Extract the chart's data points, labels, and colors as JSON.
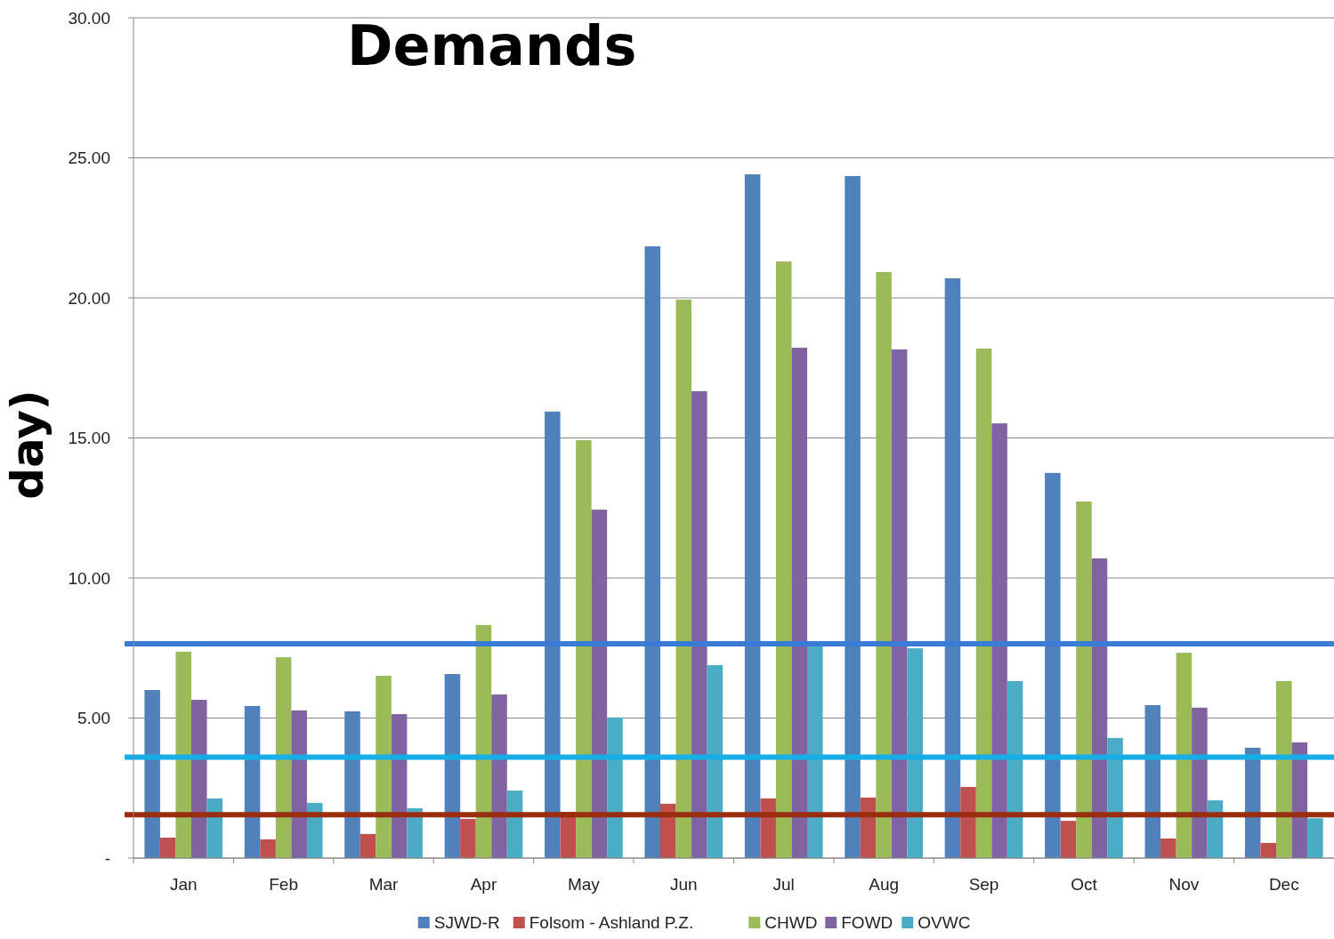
{
  "chart_data": {
    "type": "bar",
    "title": "Demands",
    "ylabel": "day)",
    "categories": [
      "Jan",
      "Feb",
      "Mar",
      "Apr",
      "May",
      "Jun",
      "Jul",
      "Aug",
      "Sep",
      "Oct",
      "Nov",
      "Dec"
    ],
    "series": [
      {
        "name": "SJWD-R",
        "color": "#4f81bd",
        "values": [
          6.0,
          5.43,
          5.24,
          6.57,
          15.94,
          21.84,
          24.41,
          24.35,
          20.7,
          13.75,
          5.46,
          3.94
        ]
      },
      {
        "name": "Folsom - Ashland P.Z.",
        "color": "#c0504d",
        "values": [
          0.73,
          0.67,
          0.86,
          1.4,
          1.65,
          1.94,
          2.13,
          2.16,
          2.54,
          1.33,
          0.7,
          0.54
        ]
      },
      {
        "name": "CHWD",
        "color": "#9bbb59",
        "values": [
          7.37,
          7.17,
          6.51,
          8.32,
          14.92,
          19.94,
          21.3,
          20.92,
          18.19,
          12.73,
          7.33,
          6.32
        ]
      },
      {
        "name": "FOWD",
        "color": "#8064a2",
        "values": [
          5.65,
          5.27,
          5.14,
          5.84,
          12.44,
          16.67,
          18.22,
          18.16,
          15.52,
          10.7,
          5.37,
          4.13
        ]
      },
      {
        "name": "OVWC",
        "color": "#4bacc6",
        "values": [
          2.13,
          1.97,
          1.78,
          2.41,
          5.02,
          6.89,
          7.65,
          7.49,
          6.32,
          4.29,
          2.06,
          1.42
        ]
      }
    ],
    "ylim": [
      0,
      30
    ],
    "yticks": [
      {
        "value": 0,
        "label": "-"
      },
      {
        "value": 5,
        "label": "5.00"
      },
      {
        "value": 10,
        "label": "10.00"
      },
      {
        "value": 15,
        "label": "15.00"
      },
      {
        "value": 20,
        "label": "20.00"
      },
      {
        "value": 25,
        "label": "25.00"
      },
      {
        "value": 30,
        "label": "30.00"
      }
    ],
    "grid": "y",
    "legend": "bottom",
    "ref_lines": [
      {
        "axis": "y",
        "value": 7.65,
        "color": "#3a7bd5"
      },
      {
        "axis": "y",
        "value": 3.6,
        "color": "#17aee8"
      },
      {
        "axis": "y",
        "value": 1.55,
        "color": "#9b2d0f"
      }
    ]
  }
}
